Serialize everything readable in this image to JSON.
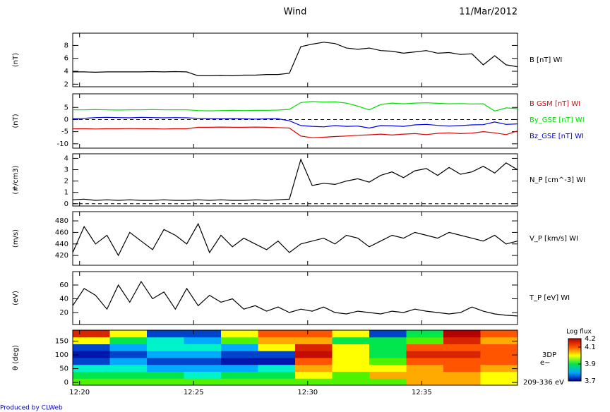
{
  "title": "Wind",
  "date": "11/Mar/2012",
  "footer": "Produced by CLWeb",
  "chart_data": [
    {
      "type": "line",
      "ylabel": "(nT)",
      "xlim": [
        19.7,
        39.2
      ],
      "ylim": [
        1.6,
        9.9
      ],
      "yticks": [
        2,
        4,
        6,
        8
      ],
      "x": [
        19.7,
        20.2,
        20.7,
        21.2,
        21.7,
        22.2,
        22.7,
        23.2,
        23.7,
        24.2,
        24.7,
        25.2,
        25.7,
        26.2,
        26.7,
        27.2,
        27.7,
        28.2,
        28.7,
        29.2,
        29.7,
        30.2,
        30.7,
        31.2,
        31.7,
        32.2,
        32.7,
        33.2,
        33.7,
        34.2,
        34.7,
        35.2,
        35.7,
        36.2,
        36.7,
        37.2,
        37.7,
        38.2,
        38.7,
        39.2
      ],
      "series": [
        {
          "name": "B [nT] WI",
          "color": "#000000",
          "values": [
            3.9,
            3.9,
            3.85,
            3.9,
            3.9,
            3.9,
            3.9,
            3.95,
            3.9,
            3.95,
            3.9,
            3.3,
            3.3,
            3.35,
            3.3,
            3.4,
            3.4,
            3.5,
            3.5,
            3.7,
            7.8,
            8.2,
            8.5,
            8.3,
            7.6,
            7.4,
            7.6,
            7.2,
            7.1,
            6.8,
            7.0,
            7.2,
            6.8,
            6.9,
            6.6,
            6.7,
            5.0,
            6.4,
            5.0,
            4.7
          ]
        }
      ]
    },
    {
      "type": "line",
      "ylabel": "(nT)",
      "xlim": [
        19.7,
        39.2
      ],
      "ylim": [
        -11.8,
        10.6
      ],
      "yticks": [
        5,
        0,
        -5,
        -10
      ],
      "hline": 0,
      "x": [
        19.7,
        20.2,
        20.7,
        21.2,
        21.7,
        22.2,
        22.7,
        23.2,
        23.7,
        24.2,
        24.7,
        25.2,
        25.7,
        26.2,
        26.7,
        27.2,
        27.7,
        28.2,
        28.7,
        29.2,
        29.7,
        30.2,
        30.7,
        31.2,
        31.7,
        32.2,
        32.7,
        33.2,
        33.7,
        34.2,
        34.7,
        35.2,
        35.7,
        36.2,
        36.7,
        37.2,
        37.7,
        38.2,
        38.7,
        39.2
      ],
      "series": [
        {
          "name": "B GSM [nT] WI",
          "color": "#e00000",
          "values": [
            -3.8,
            -3.8,
            -3.9,
            -3.8,
            -3.8,
            -3.7,
            -3.8,
            -3.8,
            -3.9,
            -3.8,
            -3.8,
            -3.2,
            -3.2,
            -3.1,
            -3.2,
            -3.2,
            -3.1,
            -3.2,
            -3.3,
            -3.5,
            -6.8,
            -7.5,
            -7.3,
            -7.0,
            -6.8,
            -6.5,
            -6.3,
            -6.0,
            -6.4,
            -6.0,
            -5.8,
            -6.2,
            -5.7,
            -5.5,
            -5.8,
            -5.6,
            -5.0,
            -5.5,
            -6.2,
            -4.7
          ]
        },
        {
          "name": "By_GSE [nT] WI",
          "color": "#00e000",
          "values": [
            4.0,
            4.0,
            4.1,
            4.0,
            3.9,
            4.0,
            4.0,
            4.1,
            4.0,
            4.0,
            4.0,
            3.7,
            3.6,
            3.7,
            3.8,
            3.7,
            3.8,
            3.8,
            3.9,
            4.2,
            7.0,
            7.5,
            7.2,
            7.3,
            6.8,
            5.5,
            4.0,
            6.2,
            6.8,
            6.5,
            6.8,
            6.9,
            6.7,
            6.5,
            6.6,
            6.4,
            6.5,
            3.5,
            4.8,
            4.5
          ]
        },
        {
          "name": "Bz_GSE [nT] WI",
          "color": "#0000e0",
          "values": [
            0.3,
            0.5,
            0.8,
            0.9,
            0.8,
            0.7,
            0.9,
            0.8,
            0.7,
            0.8,
            0.7,
            0.5,
            0.4,
            0.3,
            0.4,
            0.3,
            0.2,
            0.3,
            0.3,
            -0.5,
            -2.5,
            -2.8,
            -3.0,
            -2.5,
            -2.8,
            -2.7,
            -3.5,
            -2.5,
            -2.6,
            -2.8,
            -2.2,
            -2.0,
            -2.4,
            -2.7,
            -2.5,
            -2.2,
            -2.1,
            -1.0,
            -2.0,
            -1.8
          ]
        }
      ]
    },
    {
      "type": "line",
      "ylabel": "(#/cm3)",
      "xlim": [
        19.7,
        39.2
      ],
      "ylim": [
        -0.2,
        4.4
      ],
      "yticks": [
        0,
        1,
        2,
        3,
        4
      ],
      "hline": 0,
      "x": [
        19.7,
        20.2,
        20.7,
        21.2,
        21.7,
        22.2,
        22.7,
        23.2,
        23.7,
        24.2,
        24.7,
        25.2,
        25.7,
        26.2,
        26.7,
        27.2,
        27.7,
        28.2,
        28.7,
        29.2,
        29.7,
        30.2,
        30.7,
        31.2,
        31.7,
        32.2,
        32.7,
        33.2,
        33.7,
        34.2,
        34.7,
        35.2,
        35.7,
        36.2,
        36.7,
        37.2,
        37.7,
        38.2,
        38.7,
        39.2
      ],
      "series": [
        {
          "name": "N_P [cm^-3] WI",
          "color": "#000000",
          "values": [
            0.35,
            0.4,
            0.3,
            0.35,
            0.3,
            0.35,
            0.3,
            0.3,
            0.35,
            0.3,
            0.3,
            0.35,
            0.3,
            0.35,
            0.3,
            0.3,
            0.35,
            0.3,
            0.35,
            0.4,
            3.9,
            1.6,
            1.8,
            1.7,
            2.0,
            2.2,
            1.9,
            2.5,
            2.8,
            2.3,
            2.9,
            3.1,
            2.5,
            3.2,
            2.6,
            2.8,
            3.3,
            2.7,
            3.6,
            3.0
          ]
        }
      ]
    },
    {
      "type": "line",
      "ylabel": "(m/s)",
      "xlim": [
        19.7,
        39.2
      ],
      "ylim": [
        403,
        496
      ],
      "yticks": [
        420,
        440,
        460,
        480
      ],
      "x": [
        19.7,
        20.2,
        20.7,
        21.2,
        21.7,
        22.2,
        22.7,
        23.2,
        23.7,
        24.2,
        24.7,
        25.2,
        25.7,
        26.2,
        26.7,
        27.2,
        27.7,
        28.2,
        28.7,
        29.2,
        29.7,
        30.2,
        30.7,
        31.2,
        31.7,
        32.2,
        32.7,
        33.2,
        33.7,
        34.2,
        34.7,
        35.2,
        35.7,
        36.2,
        36.7,
        37.2,
        37.7,
        38.2,
        38.7,
        39.2
      ],
      "series": [
        {
          "name": "V_P [km/s] WI",
          "color": "#000000",
          "values": [
            425,
            470,
            440,
            455,
            420,
            460,
            445,
            430,
            465,
            455,
            440,
            475,
            425,
            455,
            435,
            450,
            440,
            430,
            445,
            425,
            440,
            445,
            450,
            440,
            455,
            450,
            435,
            445,
            455,
            450,
            460,
            455,
            450,
            460,
            455,
            450,
            445,
            455,
            440,
            445
          ]
        }
      ]
    },
    {
      "type": "line",
      "ylabel": "(eV)",
      "xlim": [
        19.7,
        39.2
      ],
      "ylim": [
        2.6,
        79.5
      ],
      "yticks": [
        20,
        40,
        60
      ],
      "x": [
        19.7,
        20.2,
        20.7,
        21.2,
        21.7,
        22.2,
        22.7,
        23.2,
        23.7,
        24.2,
        24.7,
        25.2,
        25.7,
        26.2,
        26.7,
        27.2,
        27.7,
        28.2,
        28.7,
        29.2,
        29.7,
        30.2,
        30.7,
        31.2,
        31.7,
        32.2,
        32.7,
        33.2,
        33.7,
        34.2,
        34.7,
        35.2,
        35.7,
        36.2,
        36.7,
        37.2,
        37.7,
        38.2,
        38.7,
        39.2
      ],
      "series": [
        {
          "name": "T_P [eV] WI",
          "color": "#000000",
          "values": [
            30,
            55,
            45,
            25,
            60,
            35,
            65,
            40,
            50,
            25,
            55,
            30,
            45,
            35,
            40,
            25,
            30,
            22,
            28,
            20,
            25,
            22,
            28,
            20,
            18,
            22,
            20,
            18,
            22,
            20,
            25,
            22,
            20,
            18,
            20,
            28,
            22,
            18,
            16,
            15
          ]
        }
      ]
    },
    {
      "type": "heatmap",
      "ylabel": "θ (deg)",
      "xlim": [
        19.7,
        39.2
      ],
      "ylim": [
        -10,
        190
      ],
      "yticks": [
        0,
        50,
        100,
        150
      ],
      "xticks": [
        {
          "value": 20,
          "label": "12:20"
        },
        {
          "value": 25,
          "label": "12:25"
        },
        {
          "value": 30,
          "label": "12:30"
        },
        {
          "value": 35,
          "label": "12:35"
        }
      ],
      "x_bins": [
        19.7,
        21.325,
        22.95,
        24.575,
        26.2,
        27.825,
        29.45,
        31.075,
        32.7,
        34.325,
        35.95,
        37.575,
        39.2
      ],
      "y_bins": [
        -10,
        15,
        40,
        65,
        90,
        115,
        140,
        165,
        190
      ],
      "z": [
        [
          3.95,
          3.9,
          3.85,
          3.75,
          3.72,
          3.75,
          4.0,
          4.15
        ],
        [
          3.95,
          3.9,
          3.85,
          3.8,
          3.75,
          3.8,
          3.9,
          4.0
        ],
        [
          3.95,
          3.9,
          3.8,
          3.75,
          3.8,
          3.85,
          3.85,
          3.75
        ],
        [
          3.95,
          3.85,
          3.8,
          3.75,
          3.8,
          3.85,
          3.8,
          3.75
        ],
        [
          3.95,
          3.9,
          3.8,
          3.72,
          3.75,
          3.8,
          3.95,
          4.0
        ],
        [
          3.95,
          3.9,
          3.85,
          3.72,
          3.75,
          4.0,
          4.05,
          4.1
        ],
        [
          3.95,
          4.0,
          4.05,
          4.1,
          4.18,
          4.15,
          4.05,
          4.1
        ],
        [
          3.95,
          3.95,
          4.0,
          4.0,
          4.0,
          4.0,
          3.9,
          4.0
        ],
        [
          3.95,
          4.05,
          4.0,
          3.95,
          3.9,
          3.9,
          3.9,
          3.75
        ],
        [
          4.05,
          4.05,
          4.05,
          4.1,
          4.15,
          4.1,
          3.95,
          3.9
        ],
        [
          4.05,
          4.05,
          4.1,
          4.1,
          4.15,
          4.1,
          4.15,
          4.2
        ],
        [
          4.0,
          4.0,
          4.05,
          4.1,
          4.1,
          4.1,
          4.05,
          4.1
        ]
      ],
      "annotations": [
        "3DP",
        "e−",
        "209-336 eV"
      ],
      "colorbar": {
        "title": "Log flux",
        "lim": [
          3.7,
          4.2
        ],
        "ticks": [
          3.7,
          3.9,
          4.1,
          4.2
        ]
      }
    }
  ]
}
